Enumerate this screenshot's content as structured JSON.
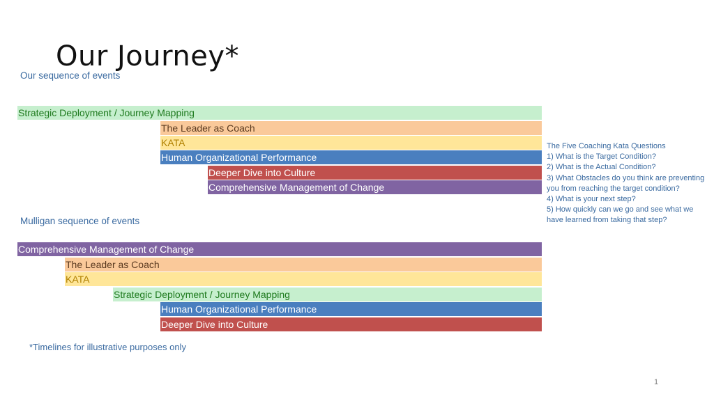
{
  "title": "Our Journey*",
  "sections": {
    "our": {
      "label": "Our sequence of events",
      "bars": [
        {
          "label": "Strategic Deployment / Journey Mapping",
          "color": "#c6efce"
        },
        {
          "label": "The Leader as Coach",
          "color": "#fac99a"
        },
        {
          "label": "KATA",
          "color": "#ffe699"
        },
        {
          "label": "Human Organizational Performance",
          "color": "#4a7fbf"
        },
        {
          "label": "Deeper Dive into Culture",
          "color": "#c0504d"
        },
        {
          "label": "Comprehensive Management of Change",
          "color": "#8064a2"
        }
      ]
    },
    "mulligan": {
      "label": "Mulligan sequence of events",
      "bars": [
        {
          "label": "Comprehensive Management of Change",
          "color": "#8064a2"
        },
        {
          "label": "The Leader as Coach",
          "color": "#fac99a"
        },
        {
          "label": "KATA",
          "color": "#ffe699"
        },
        {
          "label": "Strategic Deployment / Journey Mapping",
          "color": "#c6efce"
        },
        {
          "label": "Human Organizational Performance",
          "color": "#4a7fbf"
        },
        {
          "label": "Deeper Dive into Culture",
          "color": "#c0504d"
        }
      ]
    }
  },
  "questions": {
    "heading": "The Five Coaching Kata Questions",
    "items": [
      "1) What is the Target Condition?",
      "2) What is the Actual Condition?",
      "3) What Obstacles do you think are preventing you from reaching the target condition?",
      "4) What is your next step?",
      "5) How quickly can we go and see what we have learned from taking that step?"
    ]
  },
  "footnote": "*Timelines for illustrative purposes only",
  "page_number": "1"
}
